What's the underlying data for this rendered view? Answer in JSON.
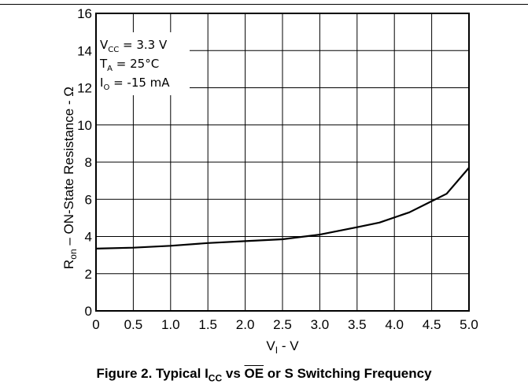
{
  "chart_data": {
    "type": "line",
    "x": [
      0,
      0.5,
      1.0,
      1.5,
      2.0,
      2.5,
      3.0,
      3.5,
      3.8,
      4.2,
      4.5,
      4.7,
      5.0
    ],
    "series": [
      {
        "values": [
          3.35,
          3.4,
          3.5,
          3.65,
          3.75,
          3.85,
          4.1,
          4.5,
          4.75,
          5.3,
          5.9,
          6.3,
          7.7
        ],
        "color": "#000000"
      }
    ],
    "xlim": [
      0,
      5.0
    ],
    "ylim": [
      0,
      16
    ],
    "x_ticks": [
      "0",
      "0.5",
      "1.0",
      "1.5",
      "2.0",
      "2.5",
      "3.0",
      "3.5",
      "4.0",
      "4.5",
      "5.0"
    ],
    "y_ticks": [
      "0",
      "2",
      "4",
      "6",
      "8",
      "10",
      "12",
      "14",
      "16"
    ],
    "xlabel": {
      "main": "V",
      "sub": "I",
      "rest": " - V"
    },
    "ylabel": {
      "main": "R",
      "sub": "on",
      "rest": " – ON-State Resistance - Ω"
    },
    "conditions": [
      {
        "main": "V",
        "sub": "CC",
        "rest": " = 3.3 V"
      },
      {
        "main": "T",
        "sub": "A",
        "rest": " = 25°C"
      },
      {
        "main": "I",
        "sub": "O",
        "rest": " = -15 mA"
      }
    ],
    "grid": true
  },
  "caption": {
    "prefix": "Figure 2. Typical I",
    "sub": "CC",
    "middle": " vs ",
    "overline": "OE",
    "suffix": " or S Switching Frequency"
  }
}
